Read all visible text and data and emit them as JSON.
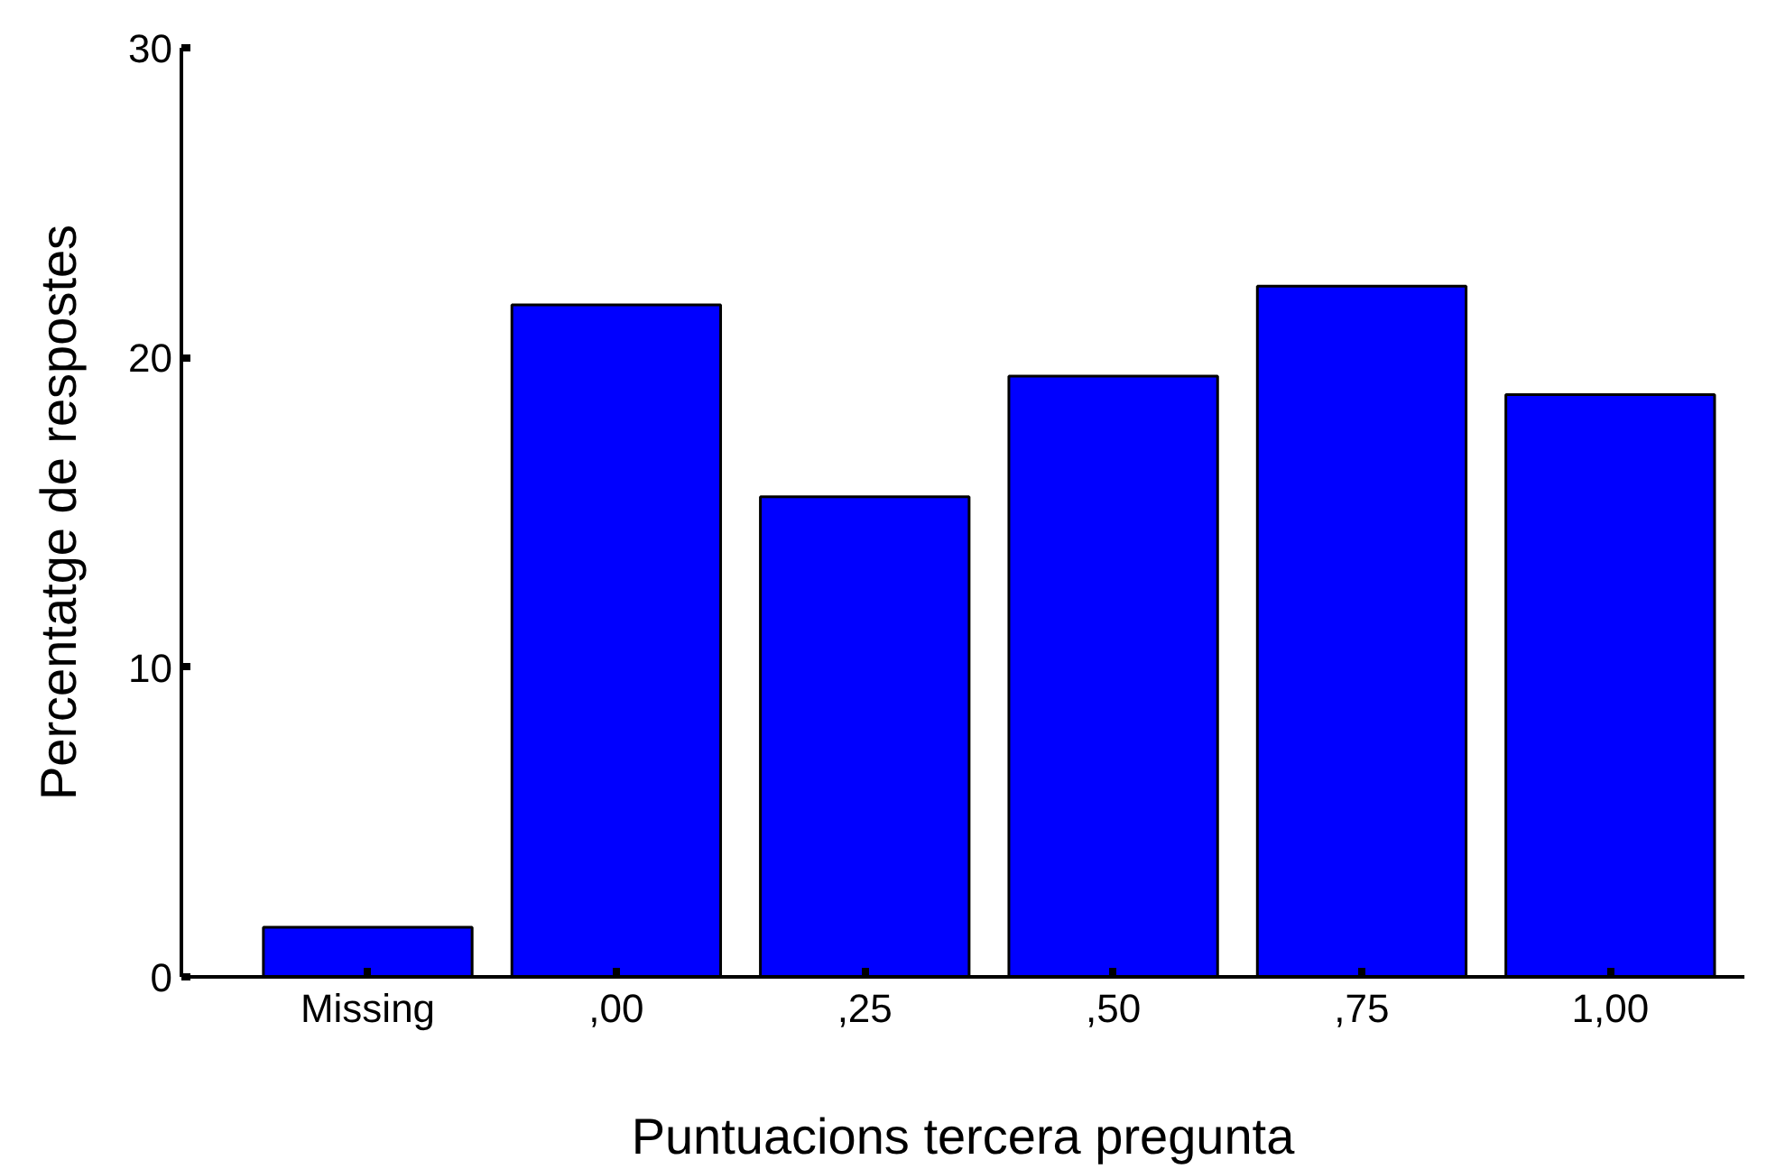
{
  "chart_data": {
    "type": "bar",
    "xlabel": "Puntuacions tercera pregunta",
    "ylabel": "Percentatge de respostes",
    "categories": [
      "Missing",
      ",00",
      ",25",
      ",50",
      ",75",
      "1,00"
    ],
    "values": [
      1.6,
      21.7,
      15.5,
      19.4,
      22.3,
      18.8
    ],
    "color": "#0000ff",
    "ylim": [
      0,
      30
    ],
    "yticks": [
      0,
      10,
      20,
      30
    ],
    "grid": false
  }
}
